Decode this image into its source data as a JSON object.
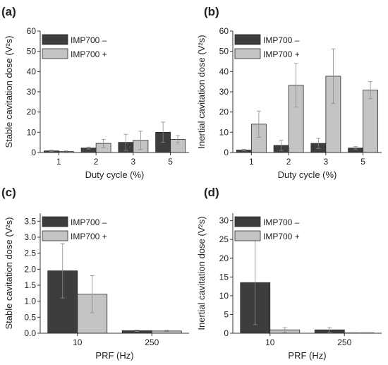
{
  "chart_data": [
    {
      "panel": "(a)",
      "type": "bar",
      "xlabel": "Duty cycle (%)",
      "ylabel": "Stable cavitation dose (V²s)",
      "categories": [
        "1",
        "2",
        "3",
        "5"
      ],
      "ylim": [
        0,
        60
      ],
      "yticks": [
        "0",
        "10",
        "20",
        "30",
        "40",
        "50",
        "60"
      ],
      "yticks_values": [
        0,
        10,
        20,
        30,
        40,
        50,
        60
      ],
      "series": [
        {
          "name": "IMP700 –",
          "color": "#3d3d3d",
          "values": [
            0.8,
            2.2,
            5.0,
            10.0
          ],
          "errors": [
            0.3,
            0.5,
            4.0,
            5.0
          ]
        },
        {
          "name": "IMP700 +",
          "color": "#c4c4c4",
          "values": [
            0.5,
            4.5,
            6.0,
            6.5
          ],
          "errors": [
            0.3,
            2.0,
            4.5,
            1.8
          ]
        }
      ]
    },
    {
      "panel": "(b)",
      "type": "bar",
      "xlabel": "Duty cycle (%)",
      "ylabel": "Inertial cavitation dose (V²s)",
      "categories": [
        "1",
        "2",
        "3",
        "5"
      ],
      "ylim": [
        0,
        60
      ],
      "yticks": [
        "0",
        "10",
        "20",
        "30",
        "40",
        "50",
        "60"
      ],
      "yticks_values": [
        0,
        10,
        20,
        30,
        40,
        50,
        60
      ],
      "series": [
        {
          "name": "IMP700 –",
          "color": "#3d3d3d",
          "values": [
            1.2,
            3.5,
            4.5,
            2.2
          ],
          "errors": [
            0.4,
            2.5,
            2.5,
            0.7
          ]
        },
        {
          "name": "IMP700 +",
          "color": "#c4c4c4",
          "values": [
            14.0,
            33.2,
            37.7,
            30.8
          ],
          "errors": [
            6.5,
            10.8,
            13.5,
            4.2
          ]
        }
      ]
    },
    {
      "panel": "(c)",
      "type": "bar",
      "xlabel": "PRF (Hz)",
      "ylabel": "Stable cavitation dose (V²s)",
      "categories": [
        "10",
        "250"
      ],
      "ylim": [
        0,
        3.75
      ],
      "yticks": [
        "0.0",
        "0.5",
        "1.0",
        "1.5",
        "2.0",
        "2.5",
        "3.0",
        "3.5"
      ],
      "yticks_values": [
        0,
        0.5,
        1.0,
        1.5,
        2.0,
        2.5,
        3.0,
        3.5
      ],
      "series": [
        {
          "name": "IMP700 –",
          "color": "#3d3d3d",
          "values": [
            1.95,
            0.08
          ],
          "errors": [
            0.85,
            0.02
          ]
        },
        {
          "name": "IMP700 +",
          "color": "#c4c4c4",
          "values": [
            1.22,
            0.07
          ],
          "errors": [
            0.58,
            0.02
          ]
        }
      ]
    },
    {
      "panel": "(d)",
      "type": "bar",
      "xlabel": "PRF (Hz)",
      "ylabel": "Inertial cavitation dose (V²s)",
      "categories": [
        "10",
        "250"
      ],
      "ylim": [
        0,
        32
      ],
      "yticks": [
        "0",
        "5",
        "10",
        "15",
        "20",
        "25",
        "30"
      ],
      "yticks_values": [
        0,
        5,
        10,
        15,
        20,
        25,
        30
      ],
      "series": [
        {
          "name": "IMP700 –",
          "color": "#3d3d3d",
          "values": [
            13.5,
            0.9
          ],
          "errors": [
            11.2,
            0.6
          ]
        },
        {
          "name": "IMP700 +",
          "color": "#c4c4c4",
          "values": [
            0.9,
            0.1
          ],
          "errors": [
            0.6,
            0.05
          ]
        }
      ]
    }
  ]
}
